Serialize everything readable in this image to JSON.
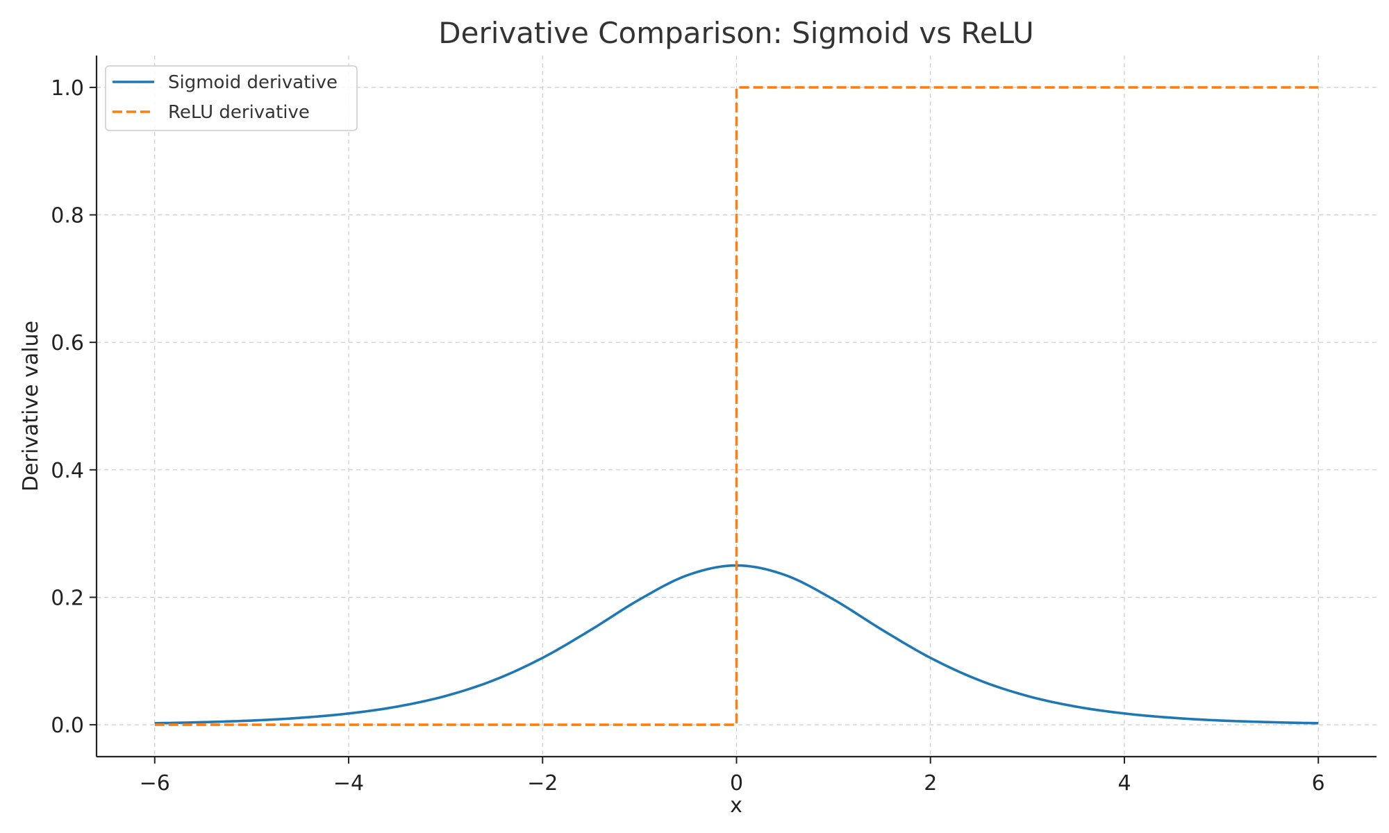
{
  "chart_data": {
    "type": "line",
    "title": "Derivative Comparison: Sigmoid vs ReLU",
    "xlabel": "x",
    "ylabel": "Derivative value",
    "xlim": [
      -6.6,
      6.6
    ],
    "ylim": [
      -0.05,
      1.05
    ],
    "xticks": [
      -6,
      -4,
      -2,
      0,
      2,
      4,
      6
    ],
    "xtick_labels": [
      "−6",
      "−4",
      "−2",
      "0",
      "2",
      "4",
      "6"
    ],
    "yticks": [
      0.0,
      0.2,
      0.4,
      0.6,
      0.8,
      1.0
    ],
    "ytick_labels": [
      "0.0",
      "0.2",
      "0.4",
      "0.6",
      "0.8",
      "1.0"
    ],
    "grid": true,
    "legend_position": "top-left",
    "series": [
      {
        "name": "Sigmoid derivative",
        "color": "#1f77b4",
        "style": "solid",
        "x": [
          -6,
          -5.5,
          -5,
          -4.5,
          -4,
          -3.5,
          -3,
          -2.5,
          -2,
          -1.5,
          -1,
          -0.5,
          0,
          0.5,
          1,
          1.5,
          2,
          2.5,
          3,
          3.5,
          4,
          4.5,
          5,
          5.5,
          6
        ],
        "y": [
          0.0025,
          0.0041,
          0.0066,
          0.0109,
          0.0177,
          0.0285,
          0.0452,
          0.0701,
          0.105,
          0.1491,
          0.1966,
          0.235,
          0.25,
          0.235,
          0.1966,
          0.1491,
          0.105,
          0.0701,
          0.0452,
          0.0285,
          0.0177,
          0.0109,
          0.0066,
          0.0041,
          0.0025
        ]
      },
      {
        "name": "ReLU derivative",
        "color": "#ff7f0e",
        "style": "dashed",
        "x": [
          -6,
          0,
          0,
          6
        ],
        "y": [
          0,
          0,
          1,
          1
        ]
      }
    ]
  }
}
